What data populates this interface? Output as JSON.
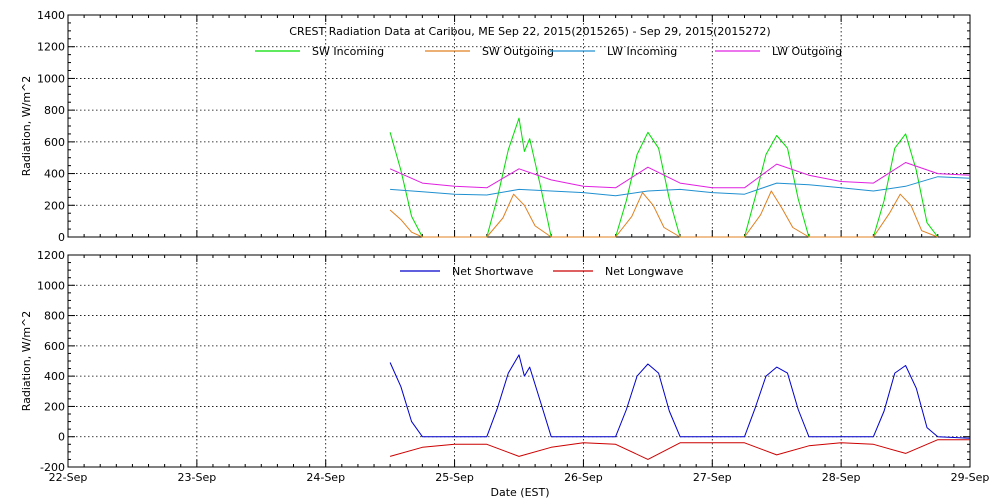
{
  "title": "CREST Radiation Data at Caribou, ME   Sep 22, 2015(2015265) - Sep 29, 2015(2015272)",
  "xlabel": "Date (EST)",
  "chart_data": [
    {
      "type": "line",
      "ylabel": "Radiation, W/m^2",
      "ylim": [
        0,
        1400
      ],
      "yticks": [
        "0",
        "200",
        "400",
        "600",
        "800",
        "1000",
        "1200",
        "1400"
      ],
      "xlim": [
        "2015-09-22 00:00",
        "2015-09-29 00:00"
      ],
      "xticks": [
        "22-Sep",
        "23-Sep",
        "24-Sep",
        "25-Sep",
        "26-Sep",
        "27-Sep",
        "28-Sep",
        "29-Sep"
      ],
      "grid": true,
      "legend_position": "top",
      "series": [
        {
          "name": "SW Incoming",
          "color": "#00dd00",
          "x": [
            "2015-09-24 12:00",
            "2015-09-24 14:00",
            "2015-09-24 16:00",
            "2015-09-24 18:00",
            "2015-09-25 06:00",
            "2015-09-25 08:00",
            "2015-09-25 10:00",
            "2015-09-25 12:00",
            "2015-09-25 13:00",
            "2015-09-25 14:00",
            "2015-09-25 16:00",
            "2015-09-25 18:00",
            "2015-09-26 06:00",
            "2015-09-26 08:00",
            "2015-09-26 10:00",
            "2015-09-26 12:00",
            "2015-09-26 14:00",
            "2015-09-26 16:00",
            "2015-09-26 18:00",
            "2015-09-27 06:00",
            "2015-09-27 08:00",
            "2015-09-27 10:00",
            "2015-09-27 12:00",
            "2015-09-27 14:00",
            "2015-09-27 16:00",
            "2015-09-27 18:00",
            "2015-09-28 06:00",
            "2015-09-28 08:00",
            "2015-09-28 10:00",
            "2015-09-28 12:00",
            "2015-09-28 14:00",
            "2015-09-28 16:00",
            "2015-09-28 18:00"
          ],
          "y": [
            660,
            420,
            130,
            0,
            0,
            250,
            550,
            750,
            540,
            620,
            320,
            0,
            0,
            230,
            520,
            660,
            560,
            240,
            0,
            0,
            250,
            520,
            640,
            560,
            240,
            0,
            0,
            230,
            560,
            650,
            420,
            90,
            0
          ]
        },
        {
          "name": "SW Outgoing",
          "color": "#e08020",
          "x": [
            "2015-09-24 12:00",
            "2015-09-24 14:00",
            "2015-09-24 16:00",
            "2015-09-24 18:00",
            "2015-09-25 06:00",
            "2015-09-25 09:00",
            "2015-09-25 11:00",
            "2015-09-25 13:00",
            "2015-09-25 15:00",
            "2015-09-25 18:00",
            "2015-09-26 06:00",
            "2015-09-26 09:00",
            "2015-09-26 11:00",
            "2015-09-26 13:00",
            "2015-09-26 15:00",
            "2015-09-26 18:00",
            "2015-09-27 06:00",
            "2015-09-27 09:00",
            "2015-09-27 11:00",
            "2015-09-27 13:00",
            "2015-09-27 15:00",
            "2015-09-27 18:00",
            "2015-09-28 06:00",
            "2015-09-28 09:00",
            "2015-09-28 11:00",
            "2015-09-28 13:00",
            "2015-09-28 15:00",
            "2015-09-28 18:00"
          ],
          "y": [
            170,
            110,
            30,
            0,
            0,
            120,
            270,
            200,
            70,
            0,
            0,
            130,
            280,
            200,
            60,
            0,
            0,
            140,
            290,
            180,
            60,
            0,
            0,
            150,
            270,
            200,
            40,
            0
          ]
        },
        {
          "name": "LW Incoming",
          "color": "#2090d0",
          "x": [
            "2015-09-24 12:00",
            "2015-09-24 18:00",
            "2015-09-25 00:00",
            "2015-09-25 06:00",
            "2015-09-25 12:00",
            "2015-09-25 18:00",
            "2015-09-26 00:00",
            "2015-09-26 06:00",
            "2015-09-26 12:00",
            "2015-09-26 18:00",
            "2015-09-27 00:00",
            "2015-09-27 06:00",
            "2015-09-27 12:00",
            "2015-09-27 18:00",
            "2015-09-28 00:00",
            "2015-09-28 06:00",
            "2015-09-28 12:00",
            "2015-09-28 18:00",
            "2015-09-29 00:00"
          ],
          "y": [
            300,
            285,
            270,
            265,
            300,
            290,
            280,
            260,
            290,
            300,
            280,
            270,
            340,
            330,
            310,
            290,
            320,
            380,
            370
          ]
        },
        {
          "name": "LW Outgoing",
          "color": "#e020e0",
          "x": [
            "2015-09-24 12:00",
            "2015-09-24 18:00",
            "2015-09-25 00:00",
            "2015-09-25 06:00",
            "2015-09-25 12:00",
            "2015-09-25 18:00",
            "2015-09-26 00:00",
            "2015-09-26 06:00",
            "2015-09-26 12:00",
            "2015-09-26 18:00",
            "2015-09-27 00:00",
            "2015-09-27 06:00",
            "2015-09-27 12:00",
            "2015-09-27 18:00",
            "2015-09-28 00:00",
            "2015-09-28 06:00",
            "2015-09-28 12:00",
            "2015-09-28 18:00",
            "2015-09-29 00:00"
          ],
          "y": [
            430,
            340,
            320,
            310,
            430,
            360,
            320,
            310,
            440,
            340,
            310,
            310,
            460,
            390,
            350,
            340,
            470,
            400,
            390
          ]
        }
      ]
    },
    {
      "type": "line",
      "ylabel": "Radiation, W/m^2",
      "ylim": [
        -200,
        1200
      ],
      "yticks": [
        "-200",
        "0",
        "200",
        "400",
        "600",
        "800",
        "1000",
        "1200"
      ],
      "xlim": [
        "2015-09-22 00:00",
        "2015-09-29 00:00"
      ],
      "xticks": [
        "22-Sep",
        "23-Sep",
        "24-Sep",
        "25-Sep",
        "26-Sep",
        "27-Sep",
        "28-Sep",
        "29-Sep"
      ],
      "grid": true,
      "legend_position": "top",
      "series": [
        {
          "name": "Net Shortwave",
          "color": "#0000cc",
          "x": [
            "2015-09-24 12:00",
            "2015-09-24 14:00",
            "2015-09-24 16:00",
            "2015-09-24 18:00",
            "2015-09-25 06:00",
            "2015-09-25 08:00",
            "2015-09-25 10:00",
            "2015-09-25 12:00",
            "2015-09-25 13:00",
            "2015-09-25 14:00",
            "2015-09-25 16:00",
            "2015-09-25 18:00",
            "2015-09-26 06:00",
            "2015-09-26 08:00",
            "2015-09-26 10:00",
            "2015-09-26 12:00",
            "2015-09-26 14:00",
            "2015-09-26 16:00",
            "2015-09-26 18:00",
            "2015-09-27 06:00",
            "2015-09-27 08:00",
            "2015-09-27 10:00",
            "2015-09-27 12:00",
            "2015-09-27 14:00",
            "2015-09-27 16:00",
            "2015-09-27 18:00",
            "2015-09-28 06:00",
            "2015-09-28 08:00",
            "2015-09-28 10:00",
            "2015-09-28 12:00",
            "2015-09-28 14:00",
            "2015-09-28 16:00",
            "2015-09-28 18:00",
            "2015-09-29 00:00"
          ],
          "y": [
            490,
            330,
            100,
            0,
            0,
            190,
            420,
            540,
            400,
            460,
            230,
            0,
            0,
            180,
            400,
            480,
            420,
            170,
            0,
            0,
            190,
            400,
            460,
            420,
            180,
            0,
            0,
            170,
            420,
            470,
            320,
            60,
            0,
            -10
          ]
        },
        {
          "name": "Net Longwave",
          "color": "#cc0000",
          "x": [
            "2015-09-24 12:00",
            "2015-09-24 18:00",
            "2015-09-25 00:00",
            "2015-09-25 06:00",
            "2015-09-25 12:00",
            "2015-09-25 18:00",
            "2015-09-26 00:00",
            "2015-09-26 06:00",
            "2015-09-26 12:00",
            "2015-09-26 18:00",
            "2015-09-27 00:00",
            "2015-09-27 06:00",
            "2015-09-27 12:00",
            "2015-09-27 18:00",
            "2015-09-28 00:00",
            "2015-09-28 06:00",
            "2015-09-28 12:00",
            "2015-09-28 18:00",
            "2015-09-29 00:00"
          ],
          "y": [
            -130,
            -70,
            -50,
            -50,
            -130,
            -70,
            -40,
            -50,
            -150,
            -40,
            -40,
            -40,
            -120,
            -60,
            -40,
            -50,
            -110,
            -20,
            -20
          ]
        }
      ]
    }
  ]
}
